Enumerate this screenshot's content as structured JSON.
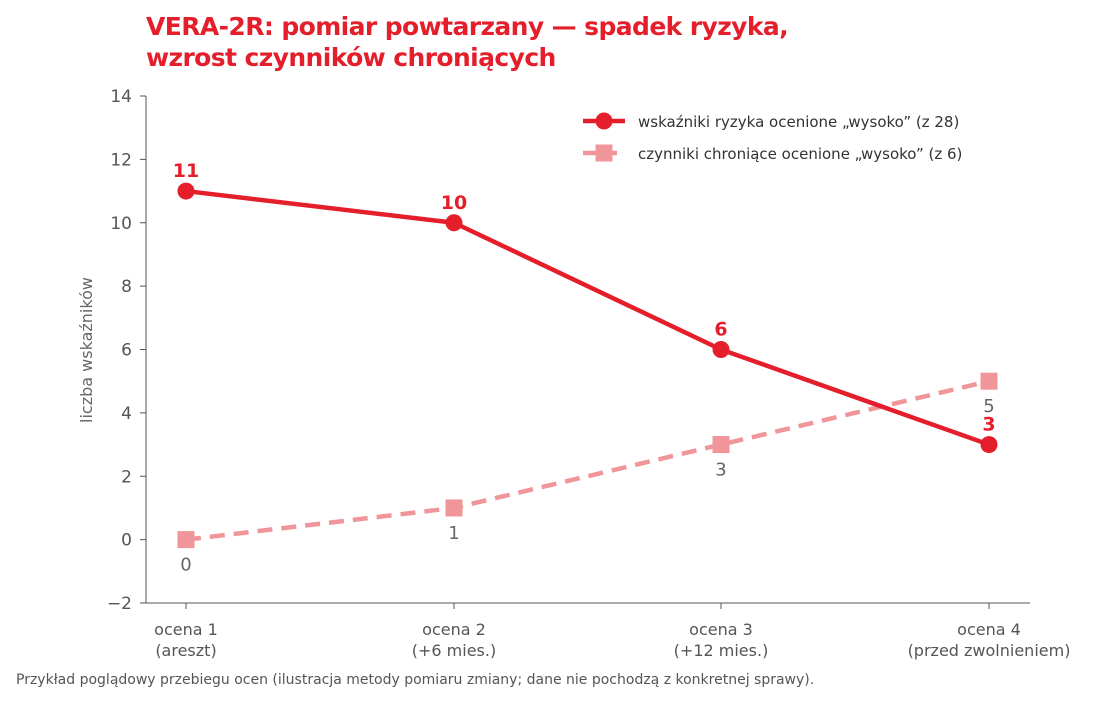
{
  "chart_data": {
    "type": "line",
    "title": [
      "VERA-2R: pomiar powtarzany — spadek ryzyka,",
      "wzrost czynników chroniących"
    ],
    "ylabel": "liczba wskaźników",
    "xlabel": "",
    "ylim": [
      -2,
      14
    ],
    "yticks": [
      -2,
      0,
      2,
      4,
      6,
      8,
      10,
      12,
      14
    ],
    "grid": false,
    "legend_position": "top-right",
    "categories": [
      [
        "ocena 1",
        "(areszt)"
      ],
      [
        "ocena 2",
        "(+6 mies.)"
      ],
      [
        "ocena 3",
        "(+12 mies.)"
      ],
      [
        "ocena 4",
        "(przed zwolnieniem)"
      ]
    ],
    "series": [
      {
        "name": "wskaźniki ryzyka ocenione „wysoko” (z 28)",
        "values": [
          11,
          10,
          6,
          3
        ],
        "color": "#e41e2b",
        "marker": "circle",
        "style": "solid",
        "labels": [
          "11",
          "10",
          "6",
          "3"
        ],
        "label_position": "above"
      },
      {
        "name": "czynniki chroniące ocenione „wysoko” (z 6)",
        "values": [
          0,
          1,
          3,
          5
        ],
        "color": "#f0959a",
        "marker": "square",
        "style": "dashed",
        "labels": [
          "0",
          "1",
          "3",
          "5"
        ],
        "label_position": "below"
      }
    ]
  },
  "footnote": "Przykład poglądowy przebiegu ocen (ilustracja metody pomiaru zmiany; dane nie pochodzą z konkretnej sprawy)."
}
